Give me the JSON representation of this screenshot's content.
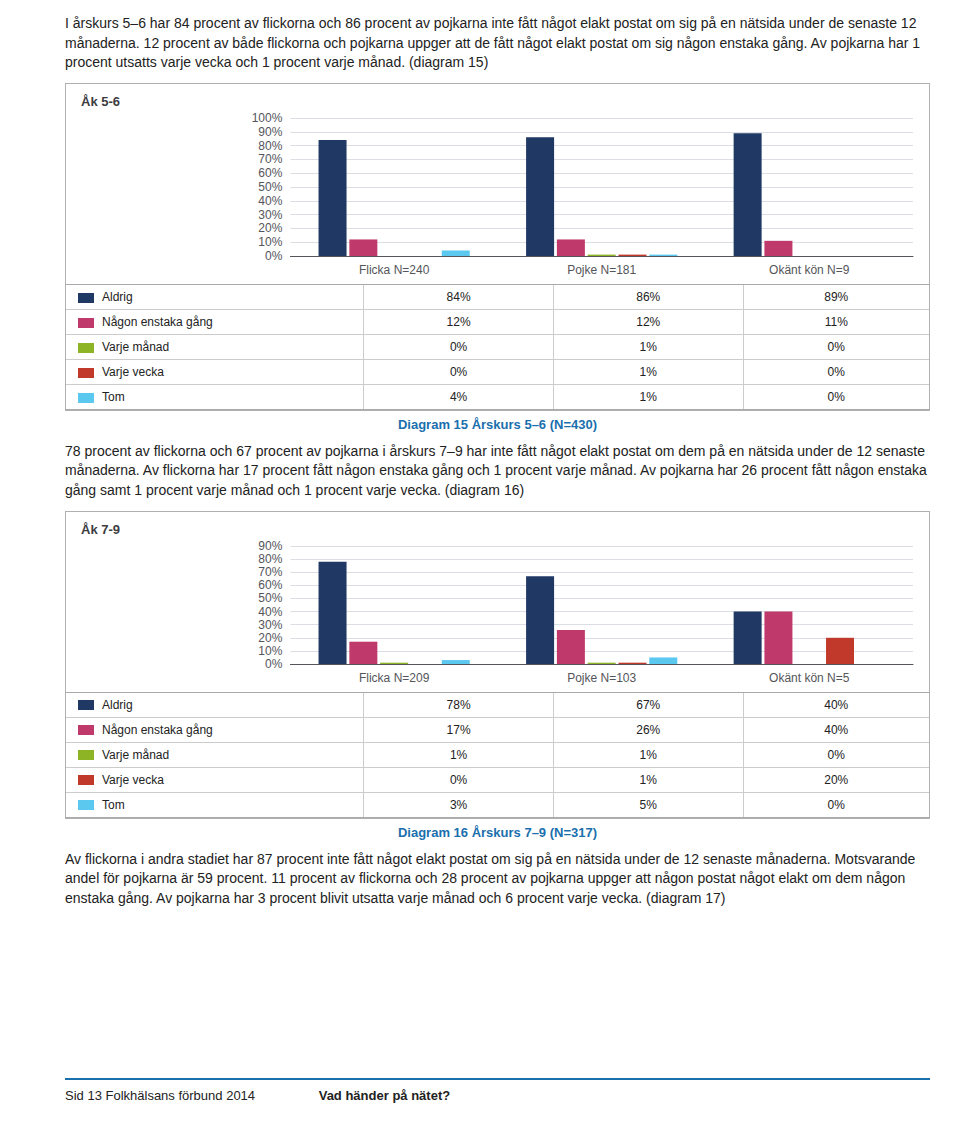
{
  "paragraphs": [
    "I årskurs 5–6 har 84 procent av flickorna och 86 procent av pojkarna inte fått något elakt postat om sig på en nätsida under de senaste 12 månaderna. 12 procent av både flickorna och pojkarna uppger att de fått något elakt postat om sig någon enstaka gång. Av pojkarna har 1 procent utsatts varje vecka och 1 procent varje månad. (diagram 15)",
    "78 procent av flickorna och 67 procent av pojkarna i årskurs 7–9 har inte fått något elakt postat om dem på en nätsida under de 12 senaste månaderna. Av flickorna har 17 procent fått någon enstaka gång och 1 procent varje månad. Av pojkarna har 26 procent fått någon enstaka gång samt 1 procent varje månad och 1 procent varje vecka. (diagram 16)",
    "Av flickorna i andra stadiet har 87 procent inte fått något elakt postat om sig på en nätsida under de 12 senaste månaderna. Motsvarande andel för pojkarna är 59 procent. 11 procent av flickorna och 28 procent av pojkarna uppger att någon postat något elakt om dem någon enstaka gång. Av pojkarna har 3 procent blivit utsatta varje månad och 6 procent varje vecka. (diagram 17)"
  ],
  "footer": [
    "Sid 13 Folkhälsans förbund 2014 ",
    "Vad händer på nätet?"
  ],
  "chart_data": [
    {
      "type": "bar",
      "title": "Åk 5-6",
      "caption": "Diagram 15 Årskurs 5–6 (N=430)",
      "categories": [
        "Flicka N=240",
        "Pojke N=181",
        "Okänt kön N=9"
      ],
      "series": [
        {
          "name": "Aldrig",
          "color": "#1f3864",
          "values": [
            84,
            86,
            89
          ],
          "value_labels": [
            "84%",
            "86%",
            "89%"
          ]
        },
        {
          "name": "Någon enstaka gång",
          "color": "#c0396b",
          "values": [
            12,
            12,
            11
          ],
          "value_labels": [
            "12%",
            "12%",
            "11%"
          ]
        },
        {
          "name": "Varje månad",
          "color": "#8db425",
          "values": [
            0,
            1,
            0
          ],
          "value_labels": [
            "0%",
            "1%",
            "0%"
          ]
        },
        {
          "name": "Varje vecka",
          "color": "#c0392b",
          "values": [
            0,
            1,
            0
          ],
          "value_labels": [
            "0%",
            "1%",
            "0%"
          ]
        },
        {
          "name": "Tom",
          "color": "#5bc8f0",
          "values": [
            4,
            1,
            0
          ],
          "value_labels": [
            "4%",
            "1%",
            "0%"
          ]
        }
      ],
      "ylim": [
        0,
        100
      ],
      "yticks": [
        {
          "value": 0,
          "label": "0%"
        },
        {
          "value": 10,
          "label": "10%"
        },
        {
          "value": 20,
          "label": "20%"
        },
        {
          "value": 30,
          "label": "30%"
        },
        {
          "value": 40,
          "label": "40%"
        },
        {
          "value": 50,
          "label": "50%"
        },
        {
          "value": 60,
          "label": "60%"
        },
        {
          "value": 70,
          "label": "70%"
        },
        {
          "value": 80,
          "label": "80%"
        },
        {
          "value": 90,
          "label": "90%"
        },
        {
          "value": 100,
          "label": "100%"
        }
      ],
      "grid": true
    },
    {
      "type": "bar",
      "title": "Åk 7-9",
      "caption": "Diagram 16 Årskurs 7–9 (N=317)",
      "categories": [
        "Flicka N=209",
        "Pojke N=103",
        "Okänt kön N=5"
      ],
      "series": [
        {
          "name": "Aldrig",
          "color": "#1f3864",
          "values": [
            78,
            67,
            40
          ],
          "value_labels": [
            "78%",
            "67%",
            "40%"
          ]
        },
        {
          "name": "Någon enstaka gång",
          "color": "#c0396b",
          "values": [
            17,
            26,
            40
          ],
          "value_labels": [
            "17%",
            "26%",
            "40%"
          ]
        },
        {
          "name": "Varje månad",
          "color": "#8db425",
          "values": [
            1,
            1,
            0
          ],
          "value_labels": [
            "1%",
            "1%",
            "0%"
          ]
        },
        {
          "name": "Varje vecka",
          "color": "#c0392b",
          "values": [
            0,
            1,
            20
          ],
          "value_labels": [
            "0%",
            "1%",
            "20%"
          ]
        },
        {
          "name": "Tom",
          "color": "#5bc8f0",
          "values": [
            3,
            5,
            0
          ],
          "value_labels": [
            "3%",
            "5%",
            "0%"
          ]
        }
      ],
      "ylim": [
        0,
        90
      ],
      "yticks": [
        {
          "value": 0,
          "label": "0%"
        },
        {
          "value": 10,
          "label": "10%"
        },
        {
          "value": 20,
          "label": "20%"
        },
        {
          "value": 30,
          "label": "30%"
        },
        {
          "value": 40,
          "label": "40%"
        },
        {
          "value": 50,
          "label": "50%"
        },
        {
          "value": 60,
          "label": "60%"
        },
        {
          "value": 70,
          "label": "70%"
        },
        {
          "value": 80,
          "label": "80%"
        },
        {
          "value": 90,
          "label": "90%"
        }
      ],
      "grid": true
    }
  ]
}
